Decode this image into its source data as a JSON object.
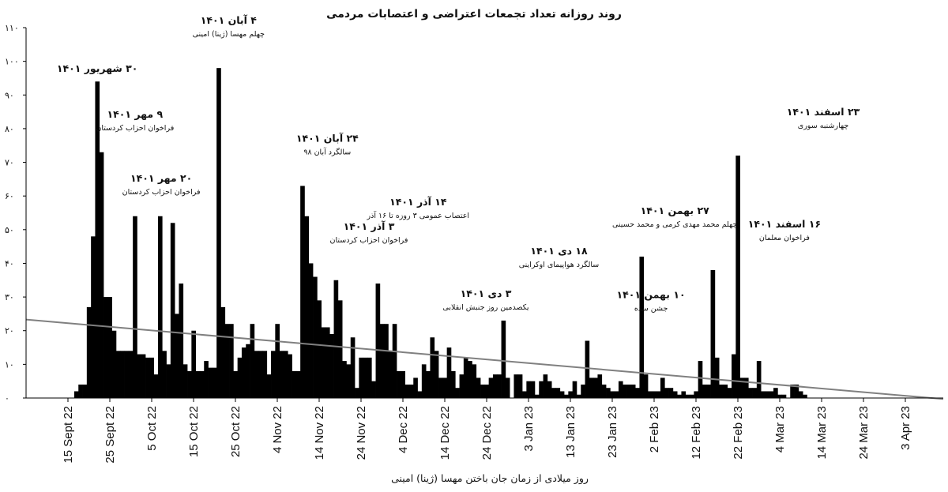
{
  "chart_data": {
    "type": "bar",
    "title": "روند روزانه تعداد تجمعات اعتراضی و اعتصابات مردمی",
    "xlabel": "روز میلادی از زمان جان باختن مهسا (ژینا) امینی",
    "ylabel": "",
    "ylim": [
      0,
      110
    ],
    "yticks": [
      0,
      10,
      20,
      30,
      40,
      50,
      60,
      70,
      80,
      90,
      100,
      110
    ],
    "ytick_labels": [
      "۰",
      "۱۰",
      "۲۰",
      "۳۰",
      "۴۰",
      "۵۰",
      "۶۰",
      "۷۰",
      "۸۰",
      "۹۰",
      "۱۰۰",
      "۱۱۰"
    ],
    "x_start": "2022-09-13",
    "xtick_labels": [
      "15 Sept 22",
      "25 Sept 22",
      "5 Oct 22",
      "15 Oct 22",
      "25 Oct 22",
      "4 Nov 22",
      "14 Nov 22",
      "24 Nov 22",
      "4 Dec 22",
      "14 Dec 22",
      "24 Dec 22",
      "3 Jan 23",
      "13 Jan 23",
      "23 Jan 23",
      "2 Feb 23",
      "12 Feb 23",
      "22 Feb 23",
      "4 Mar 23",
      "14 Mar 23",
      "24 Mar 23",
      "3 Apr 23"
    ],
    "xtick_dates": [
      "2022-09-15",
      "2022-09-25",
      "2022-10-05",
      "2022-10-15",
      "2022-10-25",
      "2022-11-04",
      "2022-11-14",
      "2022-11-24",
      "2022-12-04",
      "2022-12-14",
      "2022-12-24",
      "2023-01-03",
      "2023-01-13",
      "2023-01-23",
      "2023-02-02",
      "2023-02-12",
      "2023-02-22",
      "2023-03-04",
      "2023-03-14",
      "2023-03-24",
      "2023-04-03"
    ],
    "values": [
      0,
      0,
      0,
      0,
      2,
      4,
      4,
      27,
      48,
      94,
      73,
      30,
      30,
      20,
      14,
      14,
      14,
      14,
      54,
      13,
      13,
      12,
      12,
      7,
      54,
      14,
      10,
      52,
      25,
      34,
      10,
      8,
      20,
      8,
      8,
      11,
      9,
      9,
      98,
      27,
      22,
      22,
      8,
      12,
      15,
      16,
      22,
      14,
      14,
      14,
      7,
      14,
      22,
      14,
      14,
      13,
      8,
      8,
      63,
      54,
      40,
      36,
      29,
      21,
      21,
      19,
      35,
      29,
      11,
      10,
      18,
      3,
      12,
      12,
      12,
      5,
      34,
      22,
      22,
      14,
      22,
      8,
      8,
      4,
      4,
      6,
      2,
      10,
      8,
      18,
      14,
      6,
      6,
      15,
      8,
      3,
      7,
      12,
      11,
      10,
      6,
      4,
      4,
      6,
      7,
      7,
      23,
      6,
      0,
      7,
      7,
      2,
      5,
      5,
      1,
      5,
      7,
      5,
      3,
      3,
      2,
      1,
      2,
      5,
      1,
      4,
      17,
      6,
      6,
      7,
      4,
      3,
      2,
      2,
      5,
      4,
      4,
      4,
      3,
      42,
      7,
      2,
      2,
      2,
      6,
      3,
      3,
      2,
      1,
      2,
      1,
      1,
      2,
      11,
      4,
      4,
      38,
      12,
      4,
      4,
      3,
      13,
      72,
      6,
      6,
      3,
      3,
      11,
      2,
      2,
      2,
      3,
      1,
      1,
      0,
      4,
      4,
      2,
      1,
      0
    ],
    "trend": {
      "y_start": 23.3,
      "y_end": -0.3,
      "color": "#808080"
    },
    "bar_color": "#000000",
    "annotations": [
      {
        "title": "۳۰ شهریور ۱۴۰۱",
        "sub": "",
        "date": "2022-09-22",
        "value": 94
      },
      {
        "title": "۹ مهر ۱۴۰۱",
        "sub": "فراخوان احزاب کردستان",
        "date": "2022-10-01",
        "value": 73
      },
      {
        "title": "۲۰ مهر ۱۴۰۱",
        "sub": "فراخوان احزاب کردستان",
        "date": "2022-10-12",
        "value": 54
      },
      {
        "title": "۴ آبان ۱۴۰۱",
        "sub": "چهلم مهسا (ژینا) امینی",
        "date": "2022-10-26",
        "value": 98
      },
      {
        "title": "۲۴ آبان ۱۴۰۱",
        "sub": "سالگرد آبان ۹۸",
        "date": "2022-11-15",
        "value": 63
      },
      {
        "title": "۱۴ آذر ۱۴۰۱",
        "sub": "اعتصاب عمومی ۳ روزه تا ۱۶ آذر",
        "date": "2022-12-05",
        "value": 34
      },
      {
        "title": "۳ آذر ۱۴۰۱",
        "sub": "فراخوان احزاب کردستان",
        "date": "2022-11-24",
        "value": 35
      },
      {
        "title": "۳ دی ۱۴۰۱",
        "sub": "یکصدمین روز جنبش انقلابی",
        "date": "2022-12-24",
        "value": 15
      },
      {
        "title": "۱۸ دی ۱۴۰۱",
        "sub": "سالگرد هواپیمای اوکراینی",
        "date": "2023-01-08",
        "value": 23
      },
      {
        "title": "۱۰ بهمن ۱۴۰۱",
        "sub": "جشن سده",
        "date": "2023-01-30",
        "value": 17
      },
      {
        "title": "۲۷ بهمن ۱۴۰۱",
        "sub": "چهلم محمد مهدی کرمی و محمد حسینی",
        "date": "2023-02-16",
        "value": 42
      },
      {
        "title": "۱۶ اسفند ۱۴۰۱",
        "sub": "فراخوان معلمان",
        "date": "2023-03-07",
        "value": 38
      },
      {
        "title": "۲۳ اسفند ۱۴۰۱",
        "sub": "چهارشنبه سوری",
        "date": "2023-03-14",
        "value": 72
      }
    ]
  }
}
